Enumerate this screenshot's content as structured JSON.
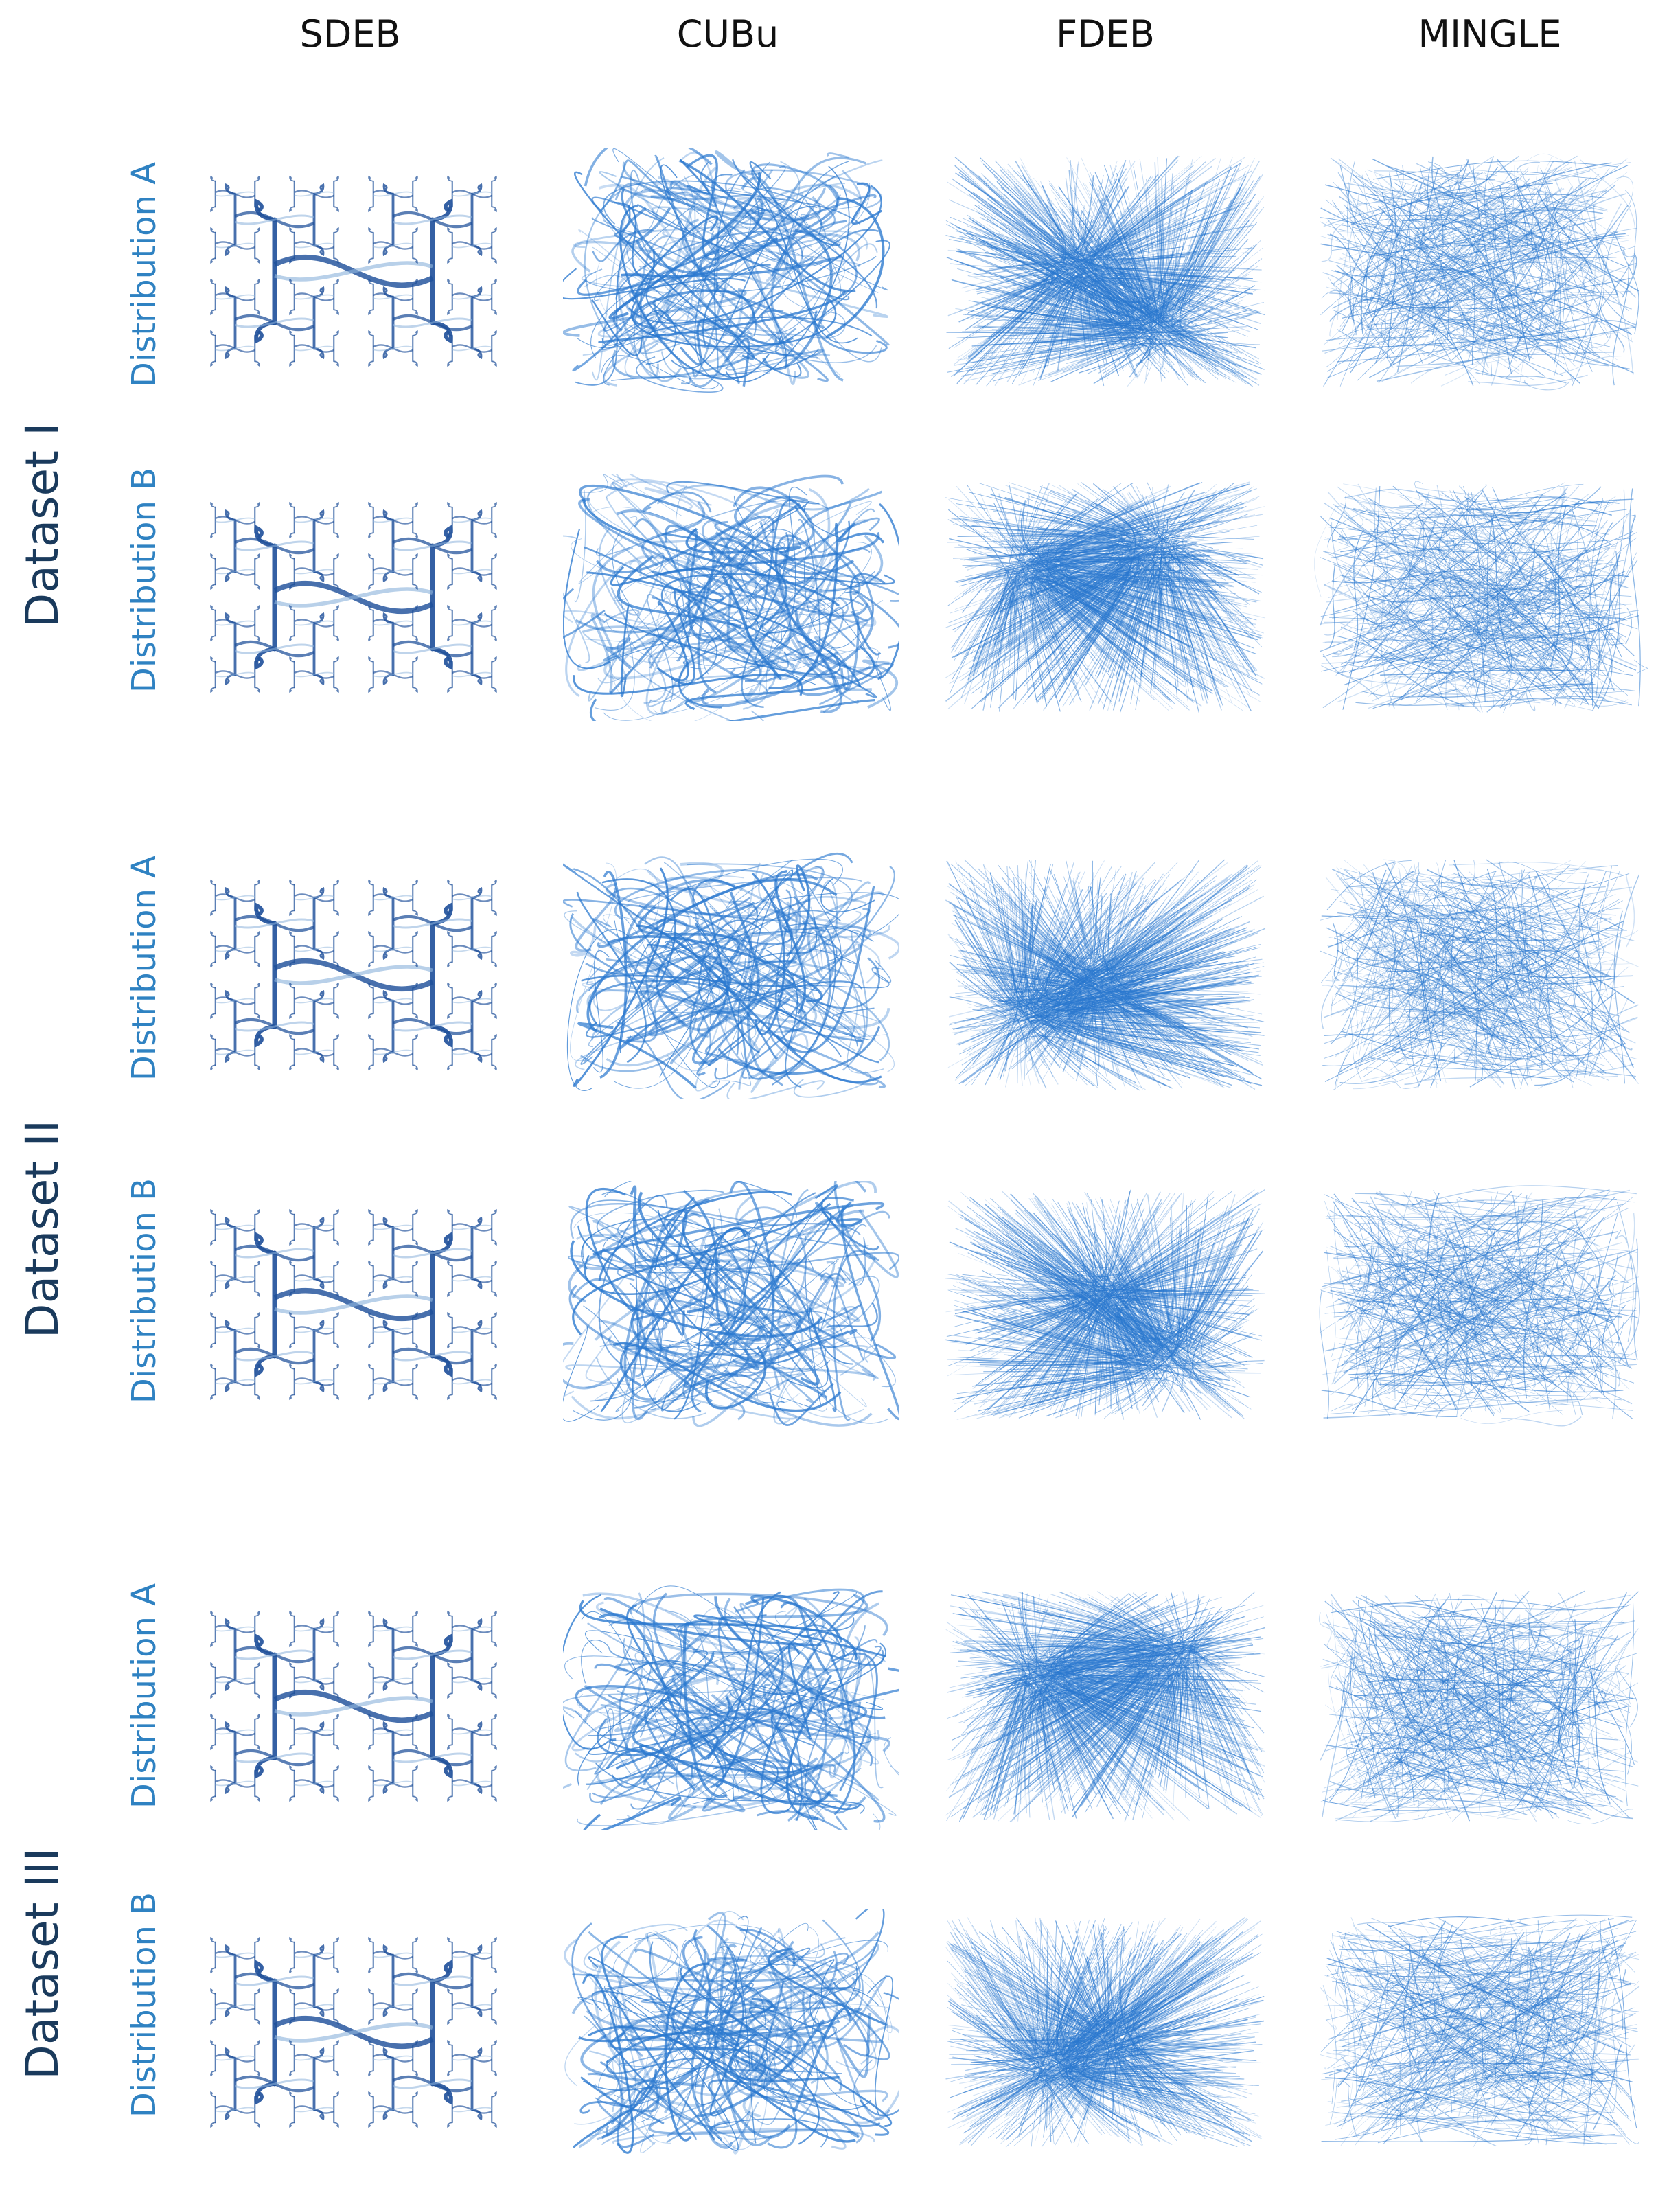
{
  "columns": [
    "SDEB",
    "CUBu",
    "FDEB",
    "MINGLE"
  ],
  "datasets": [
    {
      "label": "Dataset I",
      "rows": [
        {
          "label": "Distribution A"
        },
        {
          "label": "Distribution B"
        }
      ]
    },
    {
      "label": "Dataset II",
      "rows": [
        {
          "label": "Distribution A"
        },
        {
          "label": "Distribution B"
        }
      ]
    },
    {
      "label": "Dataset III",
      "rows": [
        {
          "label": "Distribution A"
        },
        {
          "label": "Distribution B"
        }
      ]
    }
  ],
  "colors": {
    "sdeb_edge": "#1e4f9a",
    "sdeb_light": "#8fb4dc",
    "bundle_edge": "#2a78cf",
    "dataset_label": "#1a3a5c",
    "distribution_label": "#2f82c2"
  }
}
